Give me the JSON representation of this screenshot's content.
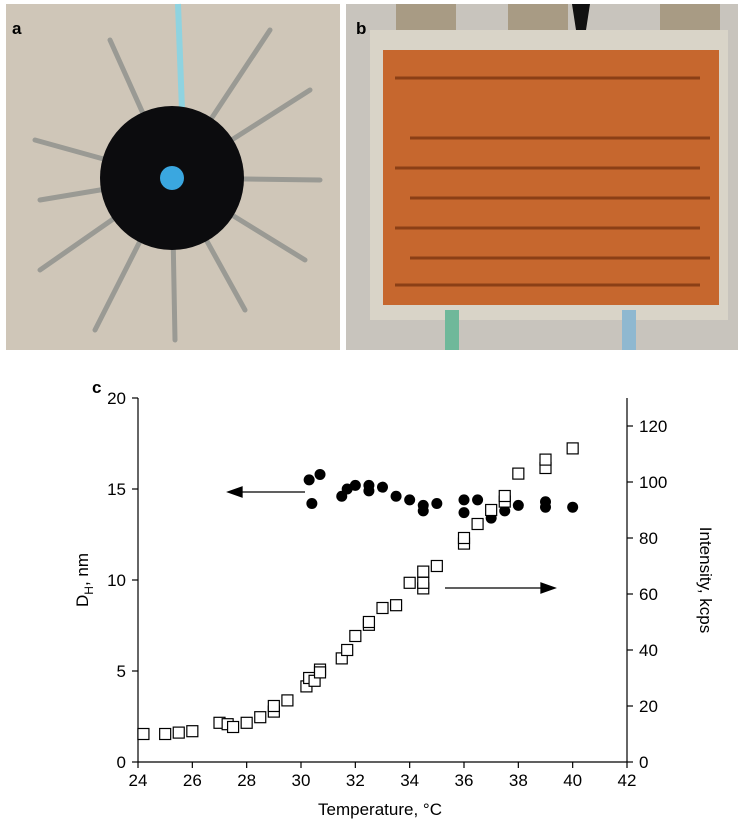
{
  "panels": [
    {
      "label": "a"
    },
    {
      "label": "b"
    }
  ],
  "chart_data": {
    "type": "scatter",
    "panel_label": "c",
    "xlabel": "Temperature, °C",
    "ylabel": [
      "D",
      "H",
      ", nm"
    ],
    "y2label": "Intensity, kcps",
    "xlim": [
      24,
      42
    ],
    "xticks": [
      24,
      26,
      28,
      30,
      32,
      34,
      36,
      38,
      40,
      42
    ],
    "ylim": [
      0,
      20
    ],
    "yticks": [
      0,
      5,
      10,
      15,
      20
    ],
    "y2lim": [
      0,
      130
    ],
    "y2ticks": [
      0,
      20,
      40,
      60,
      80,
      100,
      120
    ],
    "grid": false,
    "series": [
      {
        "marker": "circle",
        "color": "#000000",
        "x": [
          30.3,
          30.4,
          30.7,
          31.5,
          31.7,
          32,
          32.5,
          32.5,
          33,
          33.5,
          34,
          34.5,
          34.5,
          35,
          36,
          36,
          36.5,
          37,
          37.5,
          37.5,
          38,
          39,
          39,
          40
        ],
        "values": [
          15.5,
          14.2,
          15.8,
          14.6,
          15,
          15.2,
          15.2,
          14.9,
          15.1,
          14.6,
          14.4,
          14.1,
          13.8,
          14.2,
          14.4,
          13.7,
          14.4,
          13.4,
          13.8,
          14.4,
          14.1,
          14.3,
          14,
          14
        ]
      },
      {
        "marker": "square",
        "color": "#000000",
        "axis": "y2",
        "x": [
          24.2,
          25,
          25.5,
          26,
          27,
          27.3,
          27.5,
          28,
          28.5,
          29,
          29,
          29.5,
          30.2,
          30.3,
          30.5,
          30.7,
          30.7,
          31.5,
          31.7,
          32,
          32.5,
          32.5,
          33,
          33.5,
          34,
          34.5,
          34.5,
          34.5,
          35,
          36,
          36,
          36.5,
          37,
          37.5,
          37.5,
          38,
          39,
          39,
          40
        ],
        "values": [
          10,
          10,
          10.5,
          11,
          14,
          13.5,
          12.5,
          14,
          16,
          18,
          20,
          22,
          27,
          30,
          29,
          33,
          32,
          37,
          40,
          45,
          49,
          50,
          55,
          56,
          64,
          62,
          64,
          68,
          70,
          78,
          80,
          85,
          90,
          93,
          95,
          103,
          105,
          108,
          112
        ]
      }
    ]
  }
}
